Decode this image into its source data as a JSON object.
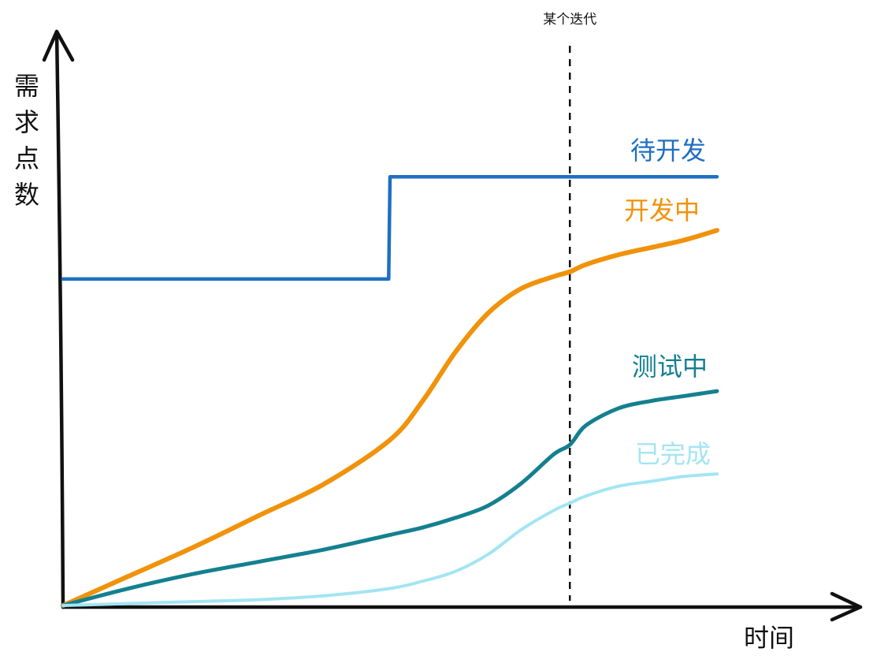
{
  "chart_data": {
    "type": "line",
    "title": "",
    "xlabel": "时间",
    "ylabel": "需求点数",
    "xlim": [
      0,
      100
    ],
    "ylim": [
      0,
      100
    ],
    "grid": false,
    "legend": "inline-right",
    "marker": {
      "label": "某个迭代",
      "x": 77.5
    },
    "series": [
      {
        "name": "待开发",
        "color": "#1f6fc2",
        "x": [
          0,
          49.8,
          50,
          100
        ],
        "values": [
          67,
          67,
          88,
          88
        ]
      },
      {
        "name": "开发中",
        "color": "#f0920a",
        "x": [
          0,
          10,
          20,
          30,
          40,
          50,
          55,
          60,
          65,
          70,
          75,
          77.5,
          80,
          85,
          90,
          95,
          100
        ],
        "values": [
          0,
          6,
          12,
          18.5,
          25,
          34,
          42,
          52,
          60,
          65,
          67.5,
          68.5,
          70,
          72,
          73.5,
          75,
          77
        ]
      },
      {
        "name": "测试中",
        "color": "#14808f",
        "x": [
          0,
          10,
          20,
          30,
          40,
          50,
          55,
          60,
          65,
          70,
          75,
          77.5,
          80,
          85,
          90,
          95,
          100
        ],
        "values": [
          0,
          3.5,
          6.5,
          9,
          11.5,
          14.5,
          16,
          18,
          20.5,
          25,
          31,
          33,
          37,
          40.5,
          42,
          43,
          44
        ]
      },
      {
        "name": "已完成",
        "color": "#a3e5f2",
        "x": [
          0,
          10,
          20,
          30,
          40,
          50,
          55,
          60,
          65,
          70,
          75,
          77.5,
          80,
          85,
          90,
          95,
          100
        ],
        "values": [
          0,
          0.4,
          0.8,
          1.2,
          2,
          3.5,
          5,
          7,
          10.5,
          15.5,
          19.5,
          21,
          22.5,
          24.5,
          25.5,
          26.5,
          27
        ]
      }
    ]
  }
}
